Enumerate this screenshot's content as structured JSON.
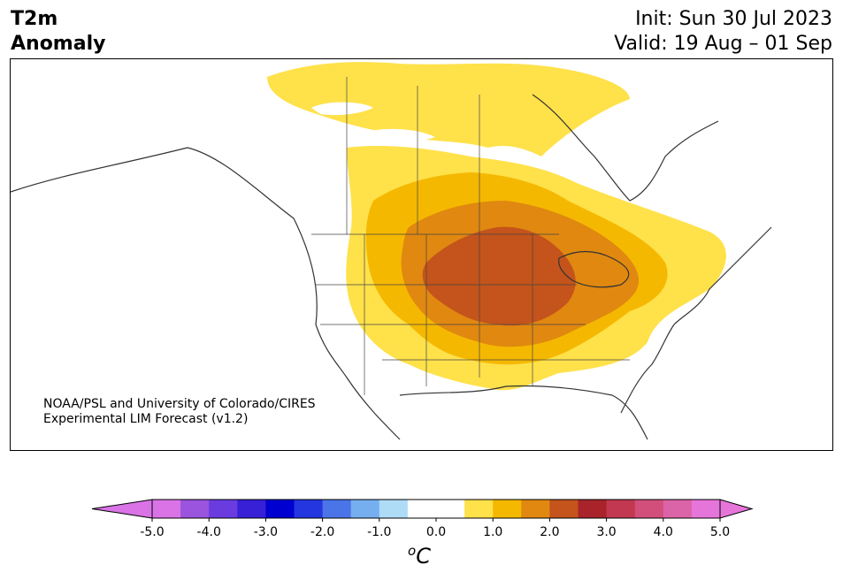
{
  "header": {
    "title_line1": "T2m",
    "title_line2": "Anomaly",
    "init_label": "Init: Sun 30 Jul 2023",
    "valid_label": "Valid: 19 Aug – 01 Sep"
  },
  "credit": {
    "line1": "NOAA/PSL and University of Colorado/CIRES",
    "line2": "Experimental LIM Forecast (v1.2)"
  },
  "colorbar": {
    "unit_base": "C",
    "unit_sup": "o",
    "tick_labels": [
      "-5.0",
      "-4.0",
      "-3.0",
      "-2.0",
      "-1.0",
      "0.0",
      "1.0",
      "2.0",
      "3.0",
      "4.0",
      "5.0"
    ],
    "under_color": "#d973e6",
    "over_color": "#e675d9",
    "colors": [
      "#d973e6",
      "#9a54de",
      "#6a3bde",
      "#3820d6",
      "#0000d0",
      "#2436df",
      "#4b74e8",
      "#76aff0",
      "#aedcf7",
      "#ffffff",
      "#ffffff",
      "#ffe14a",
      "#f5b800",
      "#e08810",
      "#c4541b",
      "#a8242a",
      "#c23850",
      "#d14f7a",
      "#db63a8",
      "#e675d9"
    ]
  },
  "map": {
    "region": "North America",
    "anomaly_peak_region": "Upper Midwest / Northern Plains"
  }
}
